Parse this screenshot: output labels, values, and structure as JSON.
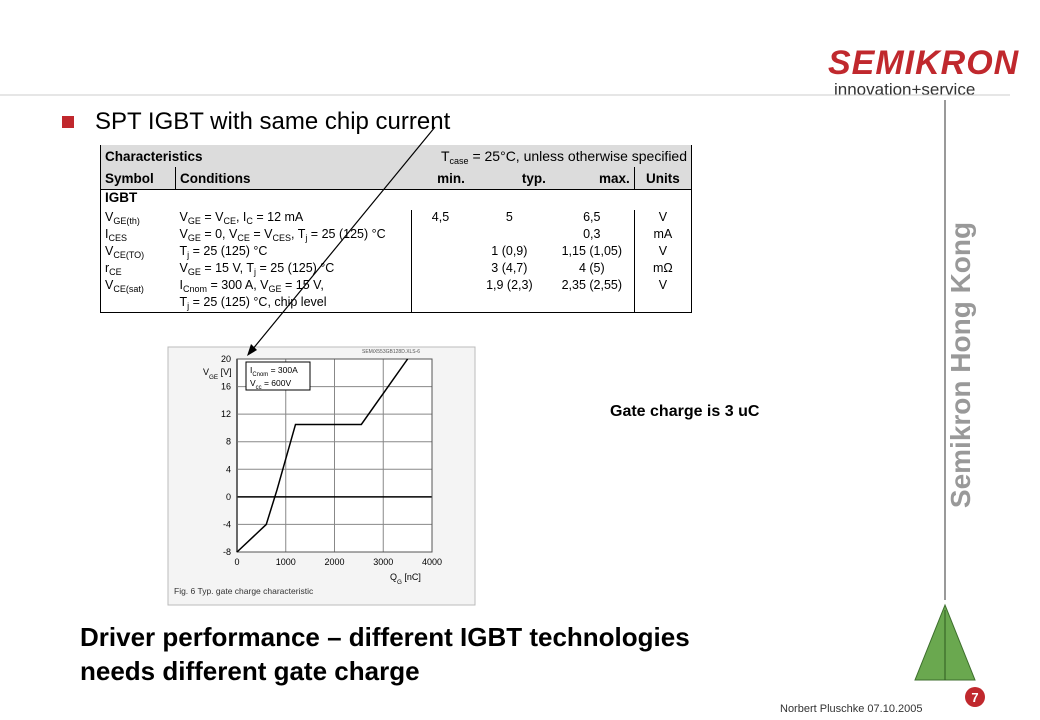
{
  "logo": {
    "brand": "SEMIKRON",
    "tagline": "innovation+service"
  },
  "bullet": "SPT IGBT with same chip current",
  "table": {
    "title": "Characteristics",
    "note": [
      "T",
      "case",
      " = 25°C, unless otherwise specified"
    ],
    "header": [
      "Symbol",
      "Conditions",
      "min.",
      "typ.",
      "max.",
      "Units"
    ],
    "section": "IGBT",
    "rows": [
      [
        [
          "V",
          "GE(th)"
        ],
        [
          "V",
          "GE",
          " = V",
          "CE",
          ", I",
          "C",
          " = 12 mA"
        ],
        "4,5",
        "5",
        "6,5",
        "V"
      ],
      [
        [
          "I",
          "CES"
        ],
        [
          "V",
          "GE",
          " = 0, V",
          "CE",
          " = V",
          "CES",
          ", T",
          "j",
          " = 25 (125) °C"
        ],
        null,
        null,
        "0,3",
        "mA"
      ],
      [
        [
          "V",
          "CE(TO)"
        ],
        [
          "T",
          "j",
          " = 25 (125) °C"
        ],
        null,
        "1 (0,9)",
        "1,15 (1,05)",
        "V"
      ],
      [
        [
          "r",
          "CE"
        ],
        [
          "V",
          "GE",
          " = 15 V, T",
          "j",
          " = 25 (125) °C"
        ],
        null,
        "3 (4,7)",
        "4 (5)",
        "mΩ"
      ],
      [
        [
          "V",
          "CE(sat)"
        ],
        [
          "I",
          "Cnom",
          " = 300 A, V",
          "GE",
          " = 15 V,"
        ],
        null,
        "1,9 (2,3)",
        "2,35 (2,55)",
        "V"
      ],
      [
        null,
        [
          "T",
          "j",
          " = 25 (125) °C, chip level"
        ],
        null,
        null,
        null,
        null
      ]
    ]
  },
  "chart_data": {
    "type": "line",
    "file_label": "SEMiX553GB128D.XLS-6",
    "caption": "Fig. 6 Typ. gate charge characteristic",
    "x_label": [
      "Q",
      "G",
      " [nC]"
    ],
    "y_label": [
      "V",
      "GE",
      " [V]"
    ],
    "annotation": [
      [
        "I",
        "Cnom",
        " = 300A"
      ],
      [
        "V",
        "cc",
        " = 600V"
      ]
    ],
    "x": [
      0,
      600,
      820,
      1200,
      2550,
      3500
    ],
    "values": [
      -8,
      -4,
      1,
      10.5,
      10.5,
      20
    ],
    "color": "#000000",
    "xlim": [
      0,
      4000
    ],
    "ylim": [
      -8,
      20
    ],
    "xticks": [
      0,
      1000,
      2000,
      3000,
      4000
    ],
    "yticks": [
      -8,
      -4,
      0,
      4,
      8,
      12,
      16,
      20
    ],
    "grid": true
  },
  "gate_note": "Gate charge is 3 uC",
  "side_label": "Semikron Hong Kong",
  "slide_title": [
    "Driver performance – different IGBT technologies",
    "needs different gate charge"
  ],
  "footer": "Norbert Pluschke 07.10.2005",
  "page_number": 7
}
